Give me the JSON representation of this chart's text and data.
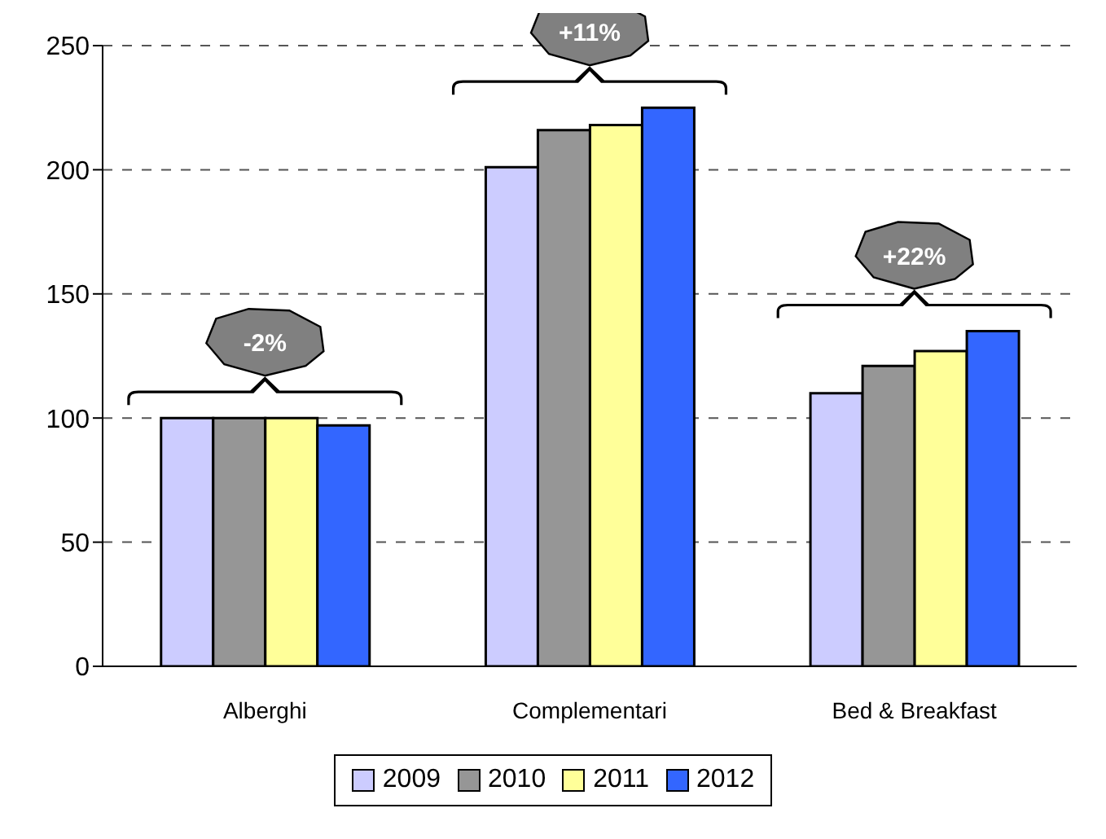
{
  "chart_data": {
    "type": "bar",
    "categories": [
      "Alberghi",
      "Complementari",
      "Bed & Breakfast"
    ],
    "series": [
      {
        "name": "2009",
        "color": "#ccccff",
        "values": [
          100,
          201,
          110
        ]
      },
      {
        "name": "2010",
        "color": "#969696",
        "values": [
          100,
          216,
          121
        ]
      },
      {
        "name": "2011",
        "color": "#ffff99",
        "values": [
          100,
          218,
          127
        ]
      },
      {
        "name": "2012",
        "color": "#3366ff",
        "values": [
          97,
          225,
          135
        ]
      }
    ],
    "ylim": [
      0,
      250
    ],
    "yticks": [
      0,
      50,
      100,
      150,
      200,
      250
    ],
    "grid": "y",
    "legend": "bottom",
    "annotations": [
      "-2%",
      "+11%",
      "+22%"
    ]
  }
}
